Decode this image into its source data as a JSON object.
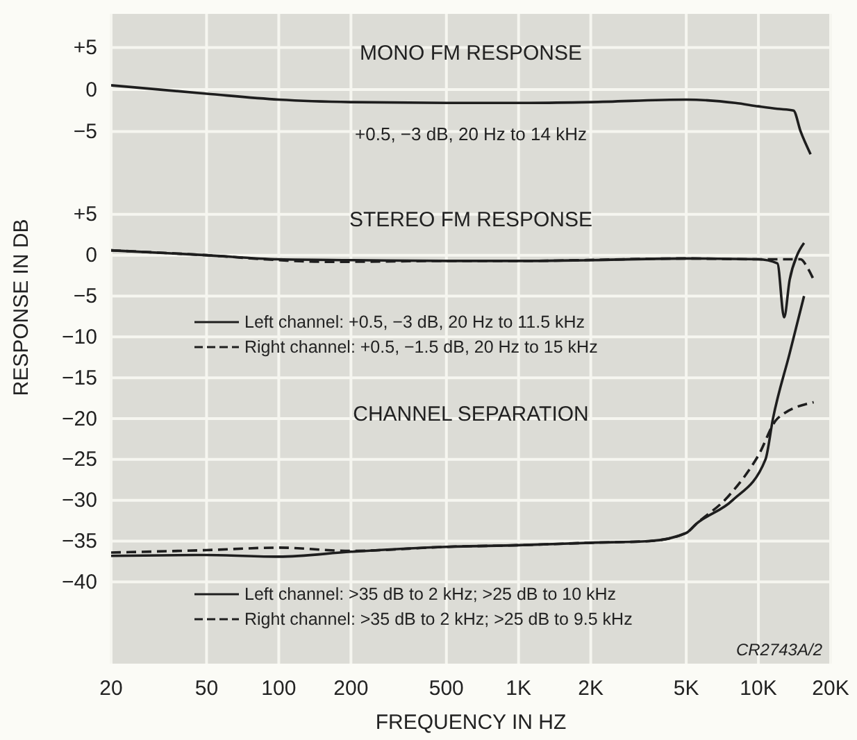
{
  "chart_data": [
    {
      "type": "line",
      "title": "MONO FM RESPONSE",
      "annotations": [
        "+0.5, −3 dB, 20 Hz to 14 kHz"
      ],
      "log": "x",
      "grid": true,
      "tick_labels": "y",
      "legend": false,
      "xlim": [
        20,
        20000
      ],
      "xticks": [
        20,
        50,
        100,
        200,
        500,
        1000,
        2000,
        5000,
        10000,
        20000
      ],
      "ylim": [
        -10,
        9
      ],
      "yticks": [
        {
          "value": 5,
          "label": "+5"
        },
        0,
        {
          "value": -5,
          "label": "−5"
        }
      ],
      "series": [
        {
          "color": "#1e1e1e",
          "line_style": "solid",
          "x": [
            20,
            50,
            100,
            200,
            500,
            1000,
            2000,
            5000,
            8000,
            10000,
            12000,
            14000,
            15000,
            16500
          ],
          "values": [
            0.5,
            -0.5,
            -1.2,
            -1.5,
            -1.6,
            -1.6,
            -1.5,
            -1.2,
            -1.6,
            -2.0,
            -2.3,
            -2.5,
            -5,
            -7.7
          ]
        }
      ]
    },
    {
      "type": "line",
      "title": "STEREO FM RESPONSE",
      "annotations": [
        "CHANNEL SEPARATION",
        "CR2743A/2"
      ],
      "xlabel": "FREQUENCY IN HZ",
      "ylabel": "RESPONSE IN DB",
      "log": "x",
      "grid": true,
      "legend": "left",
      "xlim": [
        20,
        20000
      ],
      "xticks": [
        20,
        50,
        100,
        200,
        500,
        {
          "value": 1000,
          "label": "1K"
        },
        {
          "value": 2000,
          "label": "2K"
        },
        {
          "value": 5000,
          "label": "5K"
        },
        {
          "value": 10000,
          "label": "10K"
        },
        {
          "value": 20000,
          "label": "20K"
        }
      ],
      "ylim": [
        -50,
        10
      ],
      "yticks": [
        {
          "value": 5,
          "label": "+5"
        },
        0,
        {
          "value": -5,
          "label": "−5"
        },
        {
          "value": -10,
          "label": "−10"
        },
        {
          "value": -15,
          "label": "−15"
        },
        {
          "value": -20,
          "label": "−20"
        },
        {
          "value": -25,
          "label": "−25"
        },
        {
          "value": -30,
          "label": "−30"
        },
        {
          "value": -35,
          "label": "−35"
        },
        {
          "value": -40,
          "label": "−40"
        }
      ],
      "series": [
        {
          "name": "Left channel: +0.5, −3 dB, 20 Hz to 11.5 kHz",
          "color": "#1e1e1e",
          "line_style": "solid",
          "x": [
            20,
            50,
            100,
            200,
            500,
            1000,
            2000,
            5000,
            10000,
            12000,
            12800,
            13500,
            14500,
            15500
          ],
          "values": [
            0.6,
            0,
            -0.5,
            -0.6,
            -0.7,
            -0.7,
            -0.6,
            -0.4,
            -0.5,
            -1,
            -7.6,
            -3,
            0,
            1.5
          ]
        },
        {
          "name": "Right channel: +0.5, −1.5 dB, 20 Hz to 15 kHz",
          "color": "#1e1e1e",
          "line_style": "dashed",
          "x": [
            20,
            50,
            100,
            150,
            200,
            500,
            1000,
            5000,
            10000,
            13000,
            15000,
            16000,
            17000
          ],
          "values": [
            0.6,
            0,
            -0.6,
            -0.8,
            -0.8,
            -0.7,
            -0.7,
            -0.4,
            -0.5,
            -0.5,
            -0.5,
            -1.5,
            -3
          ]
        },
        {
          "name": "Left channel: >35 dB to 2 kHz; >25 dB to 10 kHz",
          "color": "#1e1e1e",
          "line_style": "solid",
          "x": [
            20,
            50,
            100,
            200,
            500,
            1000,
            2000,
            3500,
            5000,
            5500,
            7800,
            10700,
            11500,
            13500,
            15500
          ],
          "values": [
            -36.8,
            -36.7,
            -36.9,
            -36.3,
            -35.7,
            -35.5,
            -35.2,
            -35,
            -34,
            -32.9,
            -30,
            -25,
            -20,
            -12,
            -5
          ]
        },
        {
          "name": "Right channel: >35 dB to 2 kHz; >25 dB to 9.5 kHz",
          "color": "#1e1e1e",
          "line_style": "dashed",
          "x": [
            20,
            50,
            100,
            200,
            500,
            1000,
            2000,
            3500,
            5000,
            5500,
            7500,
            10000,
            12000,
            17000
          ],
          "values": [
            -36.4,
            -36.1,
            -35.8,
            -36.2,
            -35.7,
            -35.5,
            -35.2,
            -35,
            -34,
            -32.9,
            -29.5,
            -24.5,
            -20,
            -18
          ]
        }
      ]
    }
  ]
}
